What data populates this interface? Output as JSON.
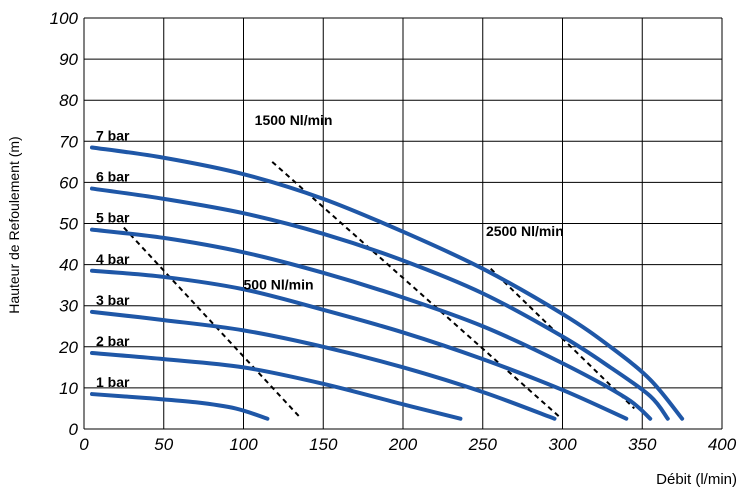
{
  "chart_data": {
    "type": "line",
    "xlabel": "Débit (l/min)",
    "ylabel": "Hauteur de Refoulement (m)",
    "xlim": [
      0,
      400
    ],
    "ylim": [
      0,
      100
    ],
    "x_ticks": [
      "0",
      "50",
      "100",
      "150",
      "200",
      "250",
      "300",
      "350",
      "400"
    ],
    "y_ticks": [
      "0",
      "10",
      "20",
      "30",
      "40",
      "50",
      "60",
      "70",
      "80",
      "90",
      "100"
    ],
    "grid": true,
    "series_color": "#1f57a7",
    "air_line_color": "#000000",
    "series": [
      {
        "name": "1 bar",
        "x": [
          5,
          40,
          70,
          95,
          115
        ],
        "y": [
          8.5,
          7.5,
          6.5,
          5,
          2.5
        ]
      },
      {
        "name": "2 bar",
        "x": [
          5,
          50,
          100,
          150,
          200,
          236
        ],
        "y": [
          18.5,
          17,
          15,
          11,
          6,
          2.5
        ]
      },
      {
        "name": "3 bar",
        "x": [
          5,
          50,
          100,
          150,
          200,
          250,
          295
        ],
        "y": [
          28.5,
          26.5,
          24,
          20,
          15,
          9,
          2.5
        ]
      },
      {
        "name": "4 bar",
        "x": [
          5,
          50,
          100,
          150,
          200,
          250,
          300,
          340
        ],
        "y": [
          38.5,
          37,
          34,
          29,
          23.5,
          17,
          9.5,
          2.5
        ]
      },
      {
        "name": "5 bar",
        "x": [
          5,
          50,
          100,
          150,
          200,
          250,
          300,
          340,
          355
        ],
        "y": [
          48.5,
          46.5,
          43,
          38,
          32,
          25,
          16,
          7.5,
          2.5
        ]
      },
      {
        "name": "6 bar",
        "x": [
          5,
          50,
          100,
          150,
          200,
          250,
          300,
          330,
          355,
          366
        ],
        "y": [
          58.5,
          56,
          52.5,
          47.5,
          41,
          33,
          22.5,
          15,
          8,
          2.5
        ]
      },
      {
        "name": "7 bar",
        "x": [
          5,
          50,
          100,
          150,
          200,
          250,
          300,
          330,
          355,
          375
        ],
        "y": [
          68.5,
          66,
          62,
          56,
          48,
          39,
          28,
          20,
          12,
          2.5
        ]
      }
    ],
    "air_consumption_lines": [
      {
        "name": "500 Nl/min",
        "x": [
          25,
          135
        ],
        "y": [
          49,
          3
        ]
      },
      {
        "name": "1500 Nl/min",
        "x": [
          118,
          298
        ],
        "y": [
          65,
          3
        ]
      },
      {
        "name": "2500 Nl/min",
        "x": [
          255,
          345
        ],
        "y": [
          39,
          5
        ]
      }
    ]
  }
}
